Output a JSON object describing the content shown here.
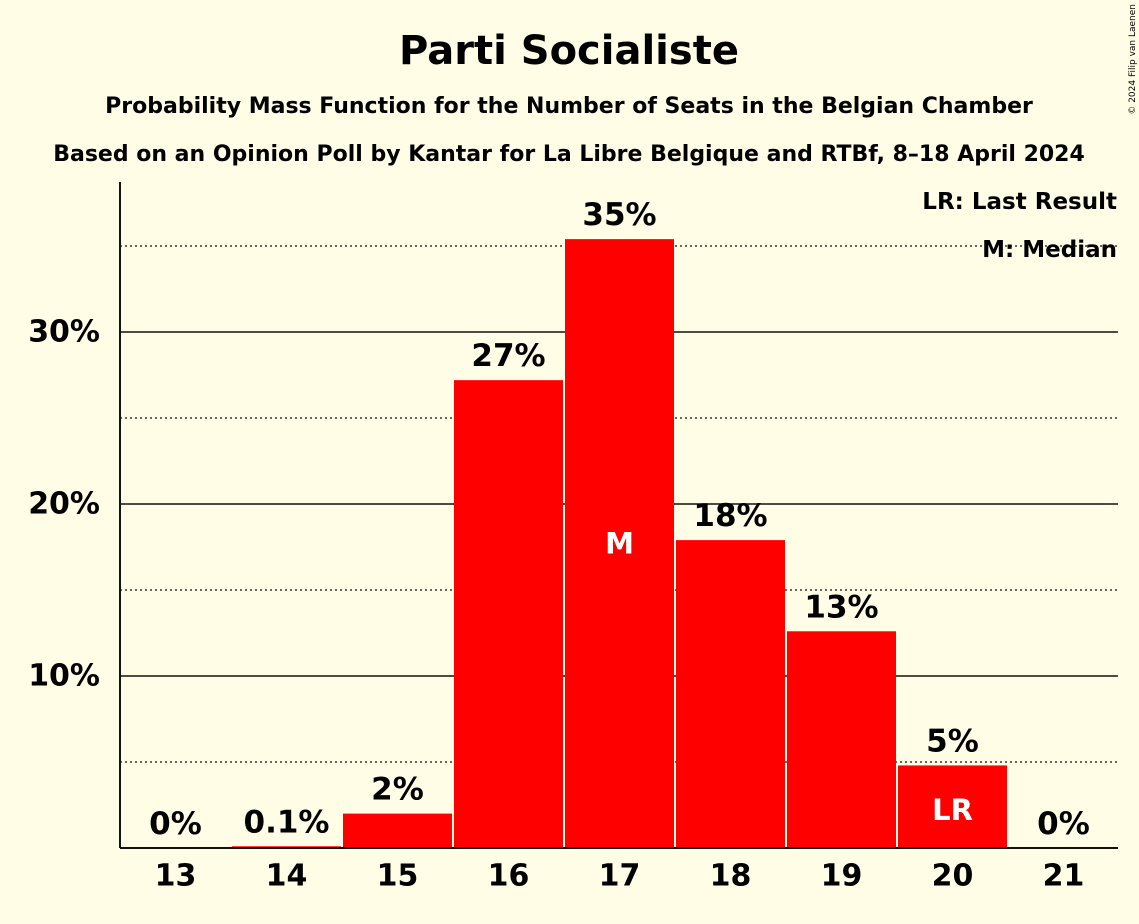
{
  "chart_data": {
    "type": "bar",
    "title": "Parti Socialiste",
    "subtitle": "Probability Mass Function for the Number of Seats in the Belgian Chamber",
    "subtitle2": "Based on an Opinion Poll by Kantar for La Libre Belgique and RTBf, 8–18 April 2024",
    "categories": [
      "13",
      "14",
      "15",
      "16",
      "17",
      "18",
      "19",
      "20",
      "21"
    ],
    "values": [
      0,
      0.1,
      2,
      27.2,
      35.4,
      17.9,
      12.6,
      4.8,
      0
    ],
    "data_labels": [
      "0%",
      "0.1%",
      "2%",
      "27%",
      "35%",
      "18%",
      "13%",
      "5%",
      "0%"
    ],
    "y_ticks": [
      {
        "value": 10,
        "label": "10%"
      },
      {
        "value": 20,
        "label": "20%"
      },
      {
        "value": 30,
        "label": "30%"
      }
    ],
    "minor_gridlines": [
      5,
      15,
      25,
      35
    ],
    "ylim": [
      0,
      38.5
    ],
    "bar_color": "#ff0000",
    "median": {
      "category": "17",
      "label": "M"
    },
    "last_result": {
      "category": "20",
      "label": "LR"
    },
    "legend": {
      "position": "top-right",
      "entries": [
        "LR: Last Result",
        "M: Median"
      ]
    },
    "copyright": "© 2024 Filip van Laenen"
  }
}
